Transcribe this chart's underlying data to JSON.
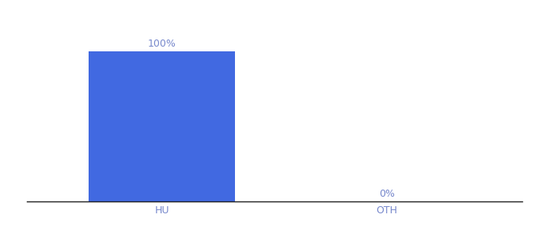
{
  "categories": [
    "HU",
    "OTH"
  ],
  "values": [
    100,
    0
  ],
  "bar_color": "#4169e1",
  "label_color": "#7788cc",
  "axis_label_color": "#7788cc",
  "background_color": "#ffffff",
  "bar_width": 0.65,
  "ylim": [
    0,
    115
  ],
  "label_fontsize": 9,
  "tick_fontsize": 9,
  "xlim": [
    -0.6,
    1.6
  ]
}
